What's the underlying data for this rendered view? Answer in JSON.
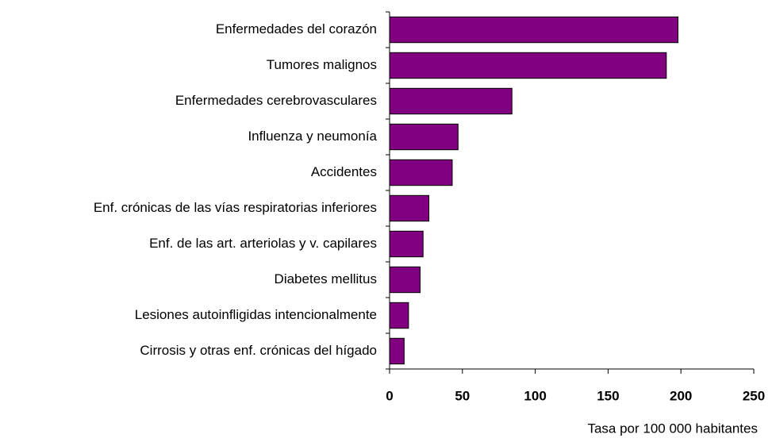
{
  "chart_data": {
    "type": "bar",
    "orientation": "horizontal",
    "x_label": "Tasa por 100 000 habitantes",
    "categories": [
      "Enfermedades del corazón",
      "Tumores malignos",
      "Enfermedades cerebrovasculares",
      "Influenza y neumonía",
      "Accidentes",
      "Enf. crónicas de las vías respiratorias inferiores",
      "Enf. de las art. arteriolas y v. capilares",
      "Diabetes mellitus",
      "Lesiones autoinfligidas intencionalmente",
      "Cirrosis y otras enf. crónicas del hígado"
    ],
    "values": [
      198,
      190,
      84,
      47,
      43,
      27,
      23,
      21,
      13,
      10
    ],
    "color": "#800080",
    "xlim": [
      0,
      250
    ],
    "xticks": [
      0,
      50,
      100,
      150,
      200,
      250
    ],
    "grid": false
  }
}
